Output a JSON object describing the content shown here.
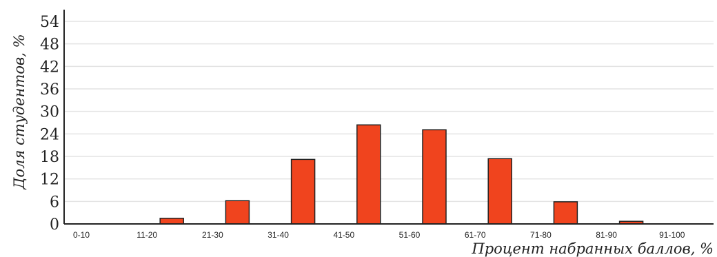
{
  "chart_data": {
    "type": "bar",
    "categories": [
      "0-10",
      "11-20",
      "21-30",
      "31-40",
      "41-50",
      "51-60",
      "61-70",
      "71-80",
      "81-90",
      "91-100"
    ],
    "values": [
      0,
      1.5,
      6.2,
      17.2,
      26.4,
      25.1,
      17.4,
      5.9,
      0.7,
      0
    ],
    "xlabel": "Процент набранных баллов, %",
    "ylabel": "Доля студентов, %",
    "yticks": [
      0,
      6,
      12,
      18,
      24,
      30,
      36,
      42,
      48,
      54
    ],
    "ylim": [
      0,
      54
    ],
    "grid": true,
    "colors": {
      "bar_fill": "#f0441e",
      "bar_stroke": "#222222",
      "grid": "#e3e3e3",
      "axis": "#222222"
    }
  }
}
